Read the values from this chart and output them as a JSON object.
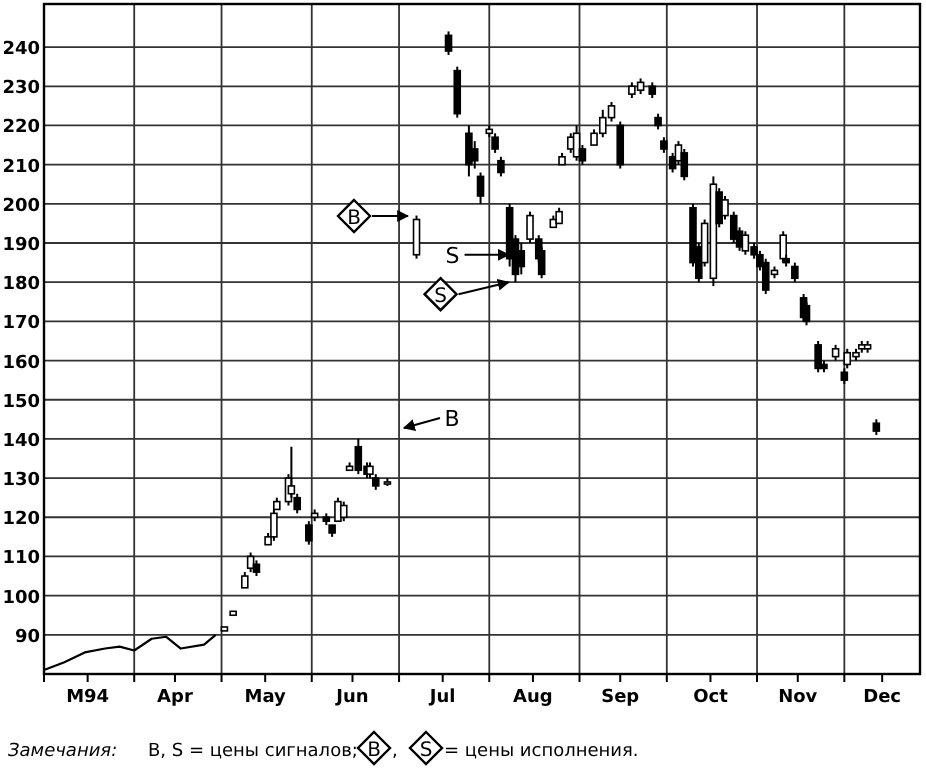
{
  "chart_data": {
    "type": "candlestick",
    "xlim": [
      "1994-03-01",
      "1994-12-27"
    ],
    "xticks": [
      {
        "value": "1994-03-01",
        "label": null
      },
      {
        "value": "1994-03-16",
        "label": "M94"
      },
      {
        "value": "1994-04-01",
        "label": null
      },
      {
        "value": "1994-04-15",
        "label": "Apr"
      },
      {
        "value": "1994-05-01",
        "label": null
      },
      {
        "value": "1994-05-16",
        "label": "May"
      },
      {
        "value": "1994-06-01",
        "label": null
      },
      {
        "value": "1994-06-15",
        "label": "Jun"
      },
      {
        "value": "1994-07-01",
        "label": null
      },
      {
        "value": "1994-07-16",
        "label": "Jul"
      },
      {
        "value": "1994-08-01",
        "label": null
      },
      {
        "value": "1994-08-16",
        "label": "Aug"
      },
      {
        "value": "1994-09-01",
        "label": null
      },
      {
        "value": "1994-09-15",
        "label": "Sep"
      },
      {
        "value": "1994-10-01",
        "label": null
      },
      {
        "value": "1994-10-16",
        "label": "Oct"
      },
      {
        "value": "1994-11-01",
        "label": null
      },
      {
        "value": "1994-11-15",
        "label": "Nov"
      },
      {
        "value": "1994-12-01",
        "label": null
      },
      {
        "value": "1994-12-14",
        "label": "Dec"
      }
    ],
    "ylim": [
      80,
      251
    ],
    "yticks": [
      90,
      100,
      110,
      120,
      130,
      140,
      150,
      160,
      170,
      180,
      190,
      200,
      210,
      220,
      230,
      240
    ],
    "grid": true,
    "series": [
      {
        "type": "line",
        "color": "#000000",
        "x": [
          "1994-03-01",
          "1994-03-08",
          "1994-03-15",
          "1994-03-22",
          "1994-03-27",
          "1994-04-01",
          "1994-04-07",
          "1994-04-12",
          "1994-04-17",
          "1994-04-25",
          "1994-04-29"
        ],
        "values": [
          81,
          83,
          85.5,
          86.5,
          87,
          86,
          89,
          89.5,
          86.5,
          87.5,
          90
        ]
      },
      {
        "color": "#000000",
        "x": [
          "1994-05-02",
          "1994-05-05",
          "1994-05-09",
          "1994-05-11",
          "1994-05-13",
          "1994-05-17",
          "1994-05-19",
          "1994-05-20",
          "1994-05-24",
          "1994-05-25",
          "1994-05-27",
          "1994-05-31",
          "1994-06-02",
          "1994-06-06",
          "1994-06-08",
          "1994-06-10",
          "1994-06-12",
          "1994-06-14",
          "1994-06-17",
          "1994-06-20",
          "1994-06-21",
          "1994-06-23",
          "1994-06-27",
          "1994-07-07",
          "1994-07-18",
          "1994-07-21",
          "1994-07-25",
          "1994-07-27",
          "1994-07-29",
          "1994-08-01",
          "1994-08-03",
          "1994-08-05",
          "1994-08-08",
          "1994-08-10",
          "1994-08-12",
          "1994-08-15",
          "1994-08-18",
          "1994-08-19",
          "1994-08-23",
          "1994-08-25",
          "1994-08-26",
          "1994-08-29",
          "1994-08-31",
          "1994-09-02",
          "1994-09-06",
          "1994-09-09",
          "1994-09-12",
          "1994-09-15",
          "1994-09-19",
          "1994-09-22",
          "1994-09-26",
          "1994-09-28",
          "1994-09-30",
          "1994-10-03",
          "1994-10-05",
          "1994-10-07",
          "1994-10-10",
          "1994-10-12",
          "1994-10-14",
          "1994-10-17",
          "1994-10-19",
          "1994-10-21",
          "1994-10-24",
          "1994-10-26",
          "1994-10-28",
          "1994-10-31",
          "1994-11-02",
          "1994-11-04",
          "1994-11-07",
          "1994-11-10",
          "1994-11-11",
          "1994-11-14",
          "1994-11-17",
          "1994-11-18",
          "1994-11-22",
          "1994-11-24",
          "1994-11-28",
          "1994-12-01",
          "1994-12-02",
          "1994-12-05",
          "1994-12-07",
          "1994-12-09",
          "1994-12-12"
        ],
        "ohlc": [
          [
            91,
            92,
            91,
            92
          ],
          [
            95,
            96,
            95,
            96
          ],
          [
            102,
            106,
            102,
            105
          ],
          [
            107,
            111,
            106,
            110
          ],
          [
            108,
            109,
            105,
            106
          ],
          [
            113,
            116,
            113,
            115
          ],
          [
            115,
            122,
            114,
            121
          ],
          [
            122,
            125,
            122,
            124
          ],
          [
            124,
            131,
            123,
            130
          ],
          [
            126,
            138,
            125,
            128
          ],
          [
            125,
            126,
            121,
            122
          ],
          [
            118,
            119,
            113,
            114
          ],
          [
            120,
            122,
            119,
            121
          ],
          [
            120,
            121,
            118,
            119
          ],
          [
            118,
            118,
            115,
            116
          ],
          [
            119,
            125,
            119,
            124
          ],
          [
            120,
            124,
            119,
            123
          ],
          [
            132,
            134,
            132,
            133
          ],
          [
            138,
            140,
            131,
            132
          ],
          [
            133,
            134,
            130,
            131
          ],
          [
            131,
            134,
            130,
            133
          ],
          [
            130,
            131,
            127,
            128
          ],
          [
            129,
            130,
            128,
            129
          ],
          [
            187,
            197,
            186,
            196
          ],
          [
            243,
            244,
            238,
            239
          ],
          [
            234,
            235,
            222,
            223
          ],
          [
            218,
            220,
            207,
            210
          ],
          [
            214,
            216,
            209,
            211
          ],
          [
            207,
            208,
            200,
            202
          ],
          [
            218,
            220,
            217,
            219
          ],
          [
            217,
            218,
            213,
            214
          ],
          [
            211,
            212,
            207,
            208
          ],
          [
            199,
            200,
            184,
            186
          ],
          [
            191,
            192,
            180,
            182
          ],
          [
            188,
            190,
            182,
            184
          ],
          [
            191,
            198,
            190,
            197
          ],
          [
            191,
            192,
            185,
            186
          ],
          [
            188,
            189,
            181,
            182
          ],
          [
            194,
            197,
            194,
            196
          ],
          [
            195,
            199,
            195,
            198
          ],
          [
            210,
            213,
            210,
            212
          ],
          [
            214,
            218,
            213,
            217
          ],
          [
            212,
            220,
            211,
            218
          ],
          [
            214,
            215,
            210,
            211
          ],
          [
            215,
            219,
            215,
            218
          ],
          [
            218,
            224,
            217,
            222
          ],
          [
            222,
            226,
            221,
            225
          ],
          [
            220,
            221,
            209,
            210
          ],
          [
            228,
            231,
            227,
            230
          ],
          [
            229,
            232,
            228,
            231
          ],
          [
            230,
            231,
            227,
            228
          ],
          [
            222,
            223,
            219,
            220
          ],
          [
            216,
            217,
            213,
            214
          ],
          [
            212,
            213,
            208,
            209
          ],
          [
            211,
            216,
            210,
            215
          ],
          [
            213,
            214,
            206,
            207
          ],
          [
            199,
            200,
            184,
            185
          ],
          [
            189,
            190,
            180,
            181
          ],
          [
            185,
            196,
            184,
            195
          ],
          [
            181,
            207,
            179,
            205
          ],
          [
            203,
            204,
            194,
            195
          ],
          [
            197,
            202,
            196,
            201
          ],
          [
            197,
            198,
            190,
            191
          ],
          [
            193,
            194,
            188,
            189
          ],
          [
            188,
            193,
            187,
            192
          ],
          [
            189,
            190,
            186,
            187
          ],
          [
            187,
            188,
            183,
            184
          ],
          [
            185,
            186,
            177,
            178
          ],
          [
            182,
            184,
            181,
            183
          ],
          [
            186,
            193,
            185,
            192
          ],
          [
            186,
            187,
            184,
            185
          ],
          [
            184,
            185,
            180,
            181
          ],
          [
            176,
            177,
            170,
            171
          ],
          [
            174,
            175,
            169,
            170
          ],
          [
            164,
            165,
            157,
            158
          ],
          [
            159,
            160,
            157,
            158
          ],
          [
            161,
            164,
            160,
            163
          ],
          [
            157,
            158,
            154,
            155
          ],
          [
            159,
            163,
            158,
            162
          ],
          [
            161,
            163,
            160,
            162
          ],
          [
            163,
            165,
            162,
            164
          ],
          [
            163,
            165,
            162,
            164
          ],
          [
            144,
            145,
            141,
            142
          ]
        ]
      }
    ],
    "annotations": [
      "B",
      {
        "text": "S",
        "x": "1994-08-09",
        "y": 187
      },
      {
        "text": "S",
        "x": "1994-08-09",
        "y": 180
      },
      "B",
      "Замечания:",
      "B, S = цены сигналов;",
      "B",
      ",",
      "S",
      "= цены исполнения."
    ]
  }
}
